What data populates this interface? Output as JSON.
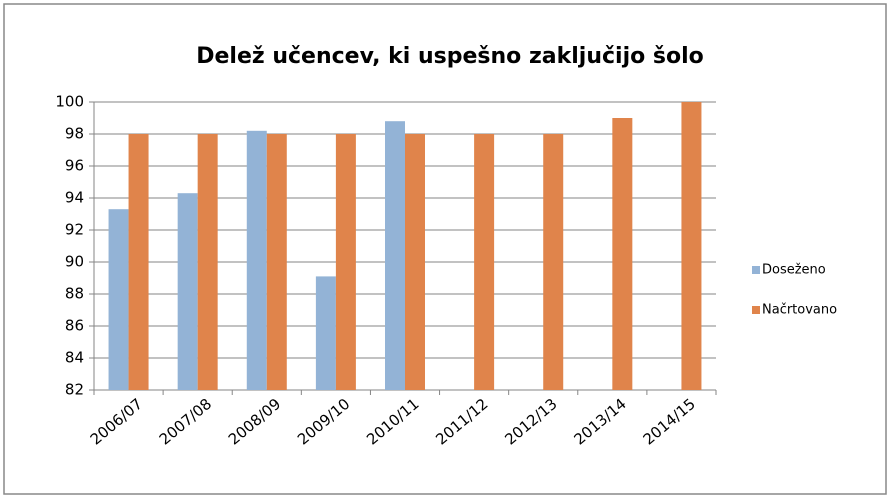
{
  "chart_data": {
    "type": "bar",
    "title": "Delež učencev, ki  uspešno  zaključijo šolo",
    "categories": [
      "2006/07",
      "2007/08",
      "2008/09",
      "2009/10",
      "2010/11",
      "2011/12",
      "2012/13",
      "2013/14",
      "2014/15"
    ],
    "series": [
      {
        "name": "Doseženo",
        "color": "#93b3d6",
        "values": [
          93.3,
          94.3,
          98.2,
          89.1,
          98.8,
          null,
          null,
          null,
          null
        ]
      },
      {
        "name": "Načrtovano",
        "color": "#e0844b",
        "values": [
          98,
          98,
          98,
          98,
          98,
          98,
          98,
          99,
          100
        ]
      }
    ],
    "ylim": [
      82,
      100
    ],
    "yticks": [
      82,
      84,
      86,
      88,
      90,
      92,
      94,
      96,
      98,
      100
    ],
    "legend": "right"
  }
}
